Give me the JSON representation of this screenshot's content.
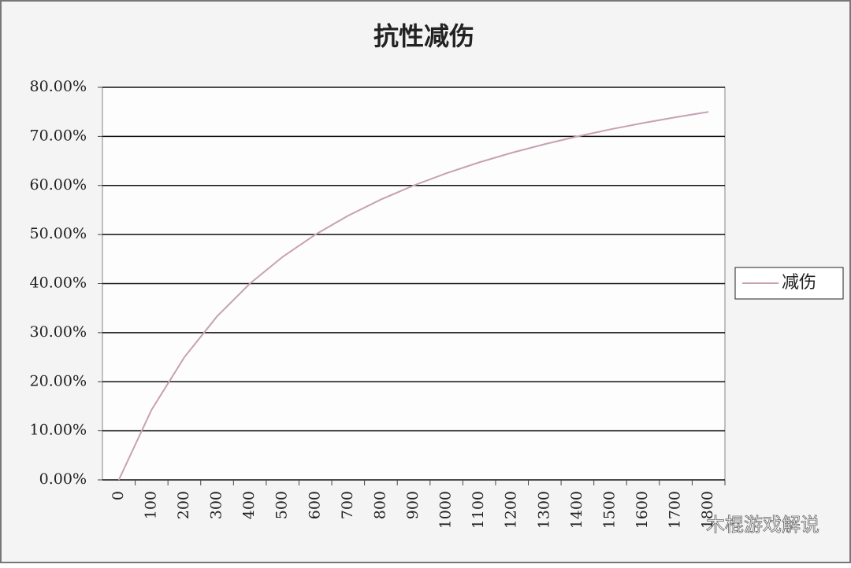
{
  "chart_data": {
    "type": "line",
    "title": "抗性减伤",
    "categories": [
      "0",
      "100",
      "200",
      "300",
      "400",
      "500",
      "600",
      "700",
      "800",
      "900",
      "1000",
      "1100",
      "1200",
      "1300",
      "1400",
      "1500",
      "1600",
      "1700",
      "1800"
    ],
    "series": [
      {
        "name": "减伤",
        "color": "#c8a0b4",
        "values": [
          0,
          14.29,
          25,
          33.33,
          40,
          45.45,
          50,
          53.85,
          57.14,
          60,
          62.5,
          64.71,
          66.67,
          68.42,
          70,
          71.43,
          72.73,
          73.91,
          75
        ]
      }
    ],
    "ylim": [
      0,
      80
    ],
    "yticks": [
      {
        "value": 0,
        "label": "0.00%"
      },
      {
        "value": 10,
        "label": "10.00%"
      },
      {
        "value": 20,
        "label": "20.00%"
      },
      {
        "value": 30,
        "label": "30.00%"
      },
      {
        "value": 40,
        "label": "40.00%"
      },
      {
        "value": 50,
        "label": "50.00%"
      },
      {
        "value": 60,
        "label": "60.00%"
      },
      {
        "value": 70,
        "label": "70.00%"
      },
      {
        "value": 80,
        "label": "80.00%"
      }
    ],
    "grid": true,
    "legend": "right"
  },
  "watermark": "木棍游戏解说"
}
